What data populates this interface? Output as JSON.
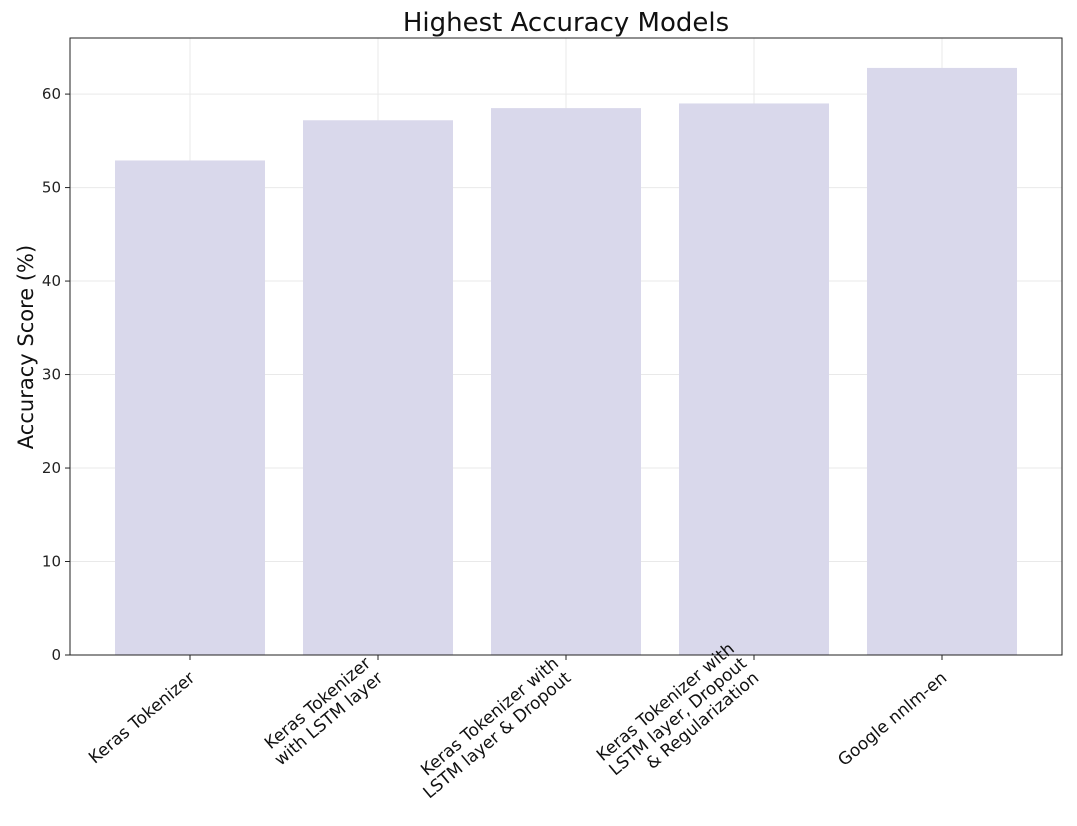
{
  "chart_data": {
    "type": "bar",
    "title": "Highest Accuracy Models",
    "xlabel": "",
    "ylabel": "Accuracy Score (%)",
    "categories": [
      [
        "Keras Tokenizer"
      ],
      [
        "Keras Tokenizer",
        "with LSTM layer"
      ],
      [
        "Keras Tokenizer with",
        "LSTM layer & Dropout"
      ],
      [
        "Keras Tokenizer with",
        "LSTM layer, Dropout",
        "& Regularization"
      ],
      [
        "Google nnlm-en"
      ]
    ],
    "values": [
      52.9,
      57.2,
      58.5,
      59.0,
      62.8
    ],
    "ylim": [
      0,
      66
    ],
    "yticks": [
      0,
      10,
      20,
      30,
      40,
      50,
      60
    ],
    "grid": true,
    "bar_color": "#d9d8eb"
  }
}
